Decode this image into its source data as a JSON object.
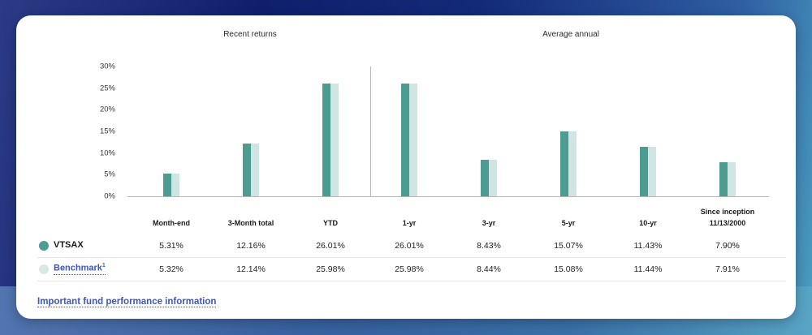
{
  "sections": {
    "recent_title": "Recent returns",
    "average_title": "Average annual"
  },
  "colors": {
    "fund": "#4c9c92",
    "benchmark": "#cfe5e3",
    "link": "#3e56b8"
  },
  "y_ticks": [
    "30%",
    "25%",
    "20%",
    "15%",
    "10%",
    "5%",
    "0%"
  ],
  "columns": [
    {
      "label": "Month-end",
      "sub": ""
    },
    {
      "label": "3-Month total",
      "sub": ""
    },
    {
      "label": "YTD",
      "sub": ""
    },
    {
      "label": "1-yr",
      "sub": ""
    },
    {
      "label": "3-yr",
      "sub": ""
    },
    {
      "label": "5-yr",
      "sub": ""
    },
    {
      "label": "10-yr",
      "sub": ""
    },
    {
      "label": "Since inception",
      "sub": "11/13/2000"
    }
  ],
  "rows": [
    {
      "label": "VTSAX",
      "values": [
        "5.31%",
        "12.16%",
        "26.01%",
        "26.01%",
        "8.43%",
        "15.07%",
        "11.43%",
        "7.90%"
      ]
    },
    {
      "label": "Benchmark",
      "sup": "1",
      "values": [
        "5.32%",
        "12.14%",
        "25.98%",
        "25.98%",
        "8.44%",
        "15.08%",
        "11.44%",
        "7.91%"
      ]
    }
  ],
  "footer_link": "Important fund performance information",
  "chart_data": {
    "type": "bar",
    "title": "",
    "groups": [
      {
        "label": "Recent returns",
        "categories": [
          "Month-end",
          "3-Month total",
          "YTD"
        ]
      },
      {
        "label": "Average annual",
        "categories": [
          "1-yr",
          "3-yr",
          "5-yr",
          "10-yr",
          "Since inception 11/13/2000"
        ]
      }
    ],
    "categories": [
      "Month-end",
      "3-Month total",
      "YTD",
      "1-yr",
      "3-yr",
      "5-yr",
      "10-yr",
      "Since inception 11/13/2000"
    ],
    "series": [
      {
        "name": "VTSAX",
        "color": "#4c9c92",
        "values": [
          5.31,
          12.16,
          26.01,
          26.01,
          8.43,
          15.07,
          11.43,
          7.9
        ]
      },
      {
        "name": "Benchmark",
        "color": "#cfe5e3",
        "values": [
          5.32,
          12.14,
          25.98,
          25.98,
          8.44,
          15.08,
          11.44,
          7.91
        ]
      }
    ],
    "xlabel": "",
    "ylabel": "",
    "ylim": [
      0,
      30
    ],
    "yticks": [
      "0%",
      "5%",
      "10%",
      "15%",
      "20%",
      "25%",
      "30%"
    ],
    "grid": false,
    "legend": "table rows below chart"
  }
}
